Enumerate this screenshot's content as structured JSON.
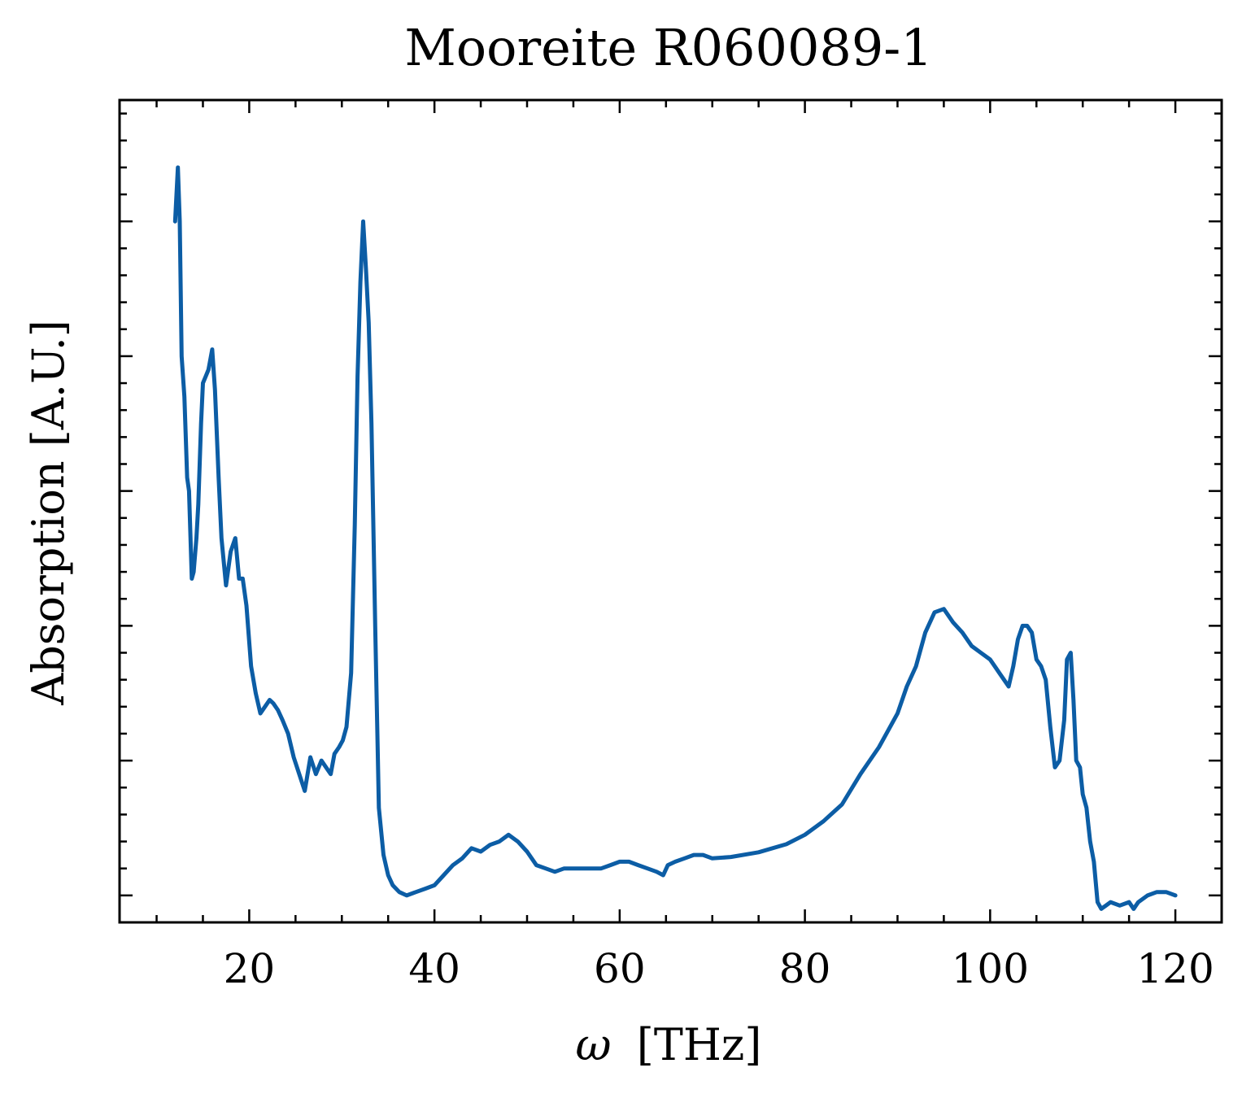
{
  "chart_data": {
    "type": "line",
    "title": "Mooreite R060089-1",
    "xlabel_symbol": "ω",
    "xlabel_unit": "[THz]",
    "ylabel": "Absorption [A.U.]",
    "xlim": [
      6,
      125
    ],
    "ylim": [
      -0.04,
      1.18
    ],
    "x_ticks": [
      20,
      40,
      60,
      80,
      100,
      120
    ],
    "x_minor_step": 5,
    "y_major_ticks": [
      0,
      0.2,
      0.4,
      0.6,
      0.8,
      1.0
    ],
    "y_minor_step": 0.04,
    "show_y_tick_labels": false,
    "grid": false,
    "legend": "none",
    "series": [
      {
        "color": "#0c5da5",
        "x": [
          12.0,
          12.3,
          12.5,
          12.7,
          13.0,
          13.3,
          13.5,
          13.8,
          14.0,
          14.3,
          14.5,
          14.8,
          15.0,
          15.3,
          15.6,
          16.0,
          16.3,
          16.7,
          17.0,
          17.5,
          18.0,
          18.5,
          18.9,
          19.3,
          19.7,
          20.2,
          20.7,
          21.2,
          21.7,
          22.2,
          22.6,
          23.1,
          23.6,
          24.2,
          24.8,
          25.4,
          26.0,
          26.6,
          27.2,
          27.8,
          28.3,
          28.8,
          29.2,
          29.7,
          30.1,
          30.5,
          31.0,
          31.4,
          31.7,
          32.0,
          32.3,
          32.6,
          32.9,
          33.2,
          33.6,
          34.0,
          34.5,
          35.0,
          35.5,
          36.2,
          37.0,
          38.0,
          39.0,
          40.0,
          41.0,
          42.0,
          43.0,
          44.0,
          45.0,
          46.0,
          47.0,
          48.0,
          49.0,
          50.0,
          51.0,
          52.0,
          53.0,
          54.0,
          56.0,
          58.0,
          59.0,
          60.0,
          61.0,
          62.0,
          63.0,
          64.0,
          64.7,
          65.2,
          66.0,
          67.0,
          68.0,
          69.0,
          70.0,
          72.0,
          75.0,
          78.0,
          80.0,
          82.0,
          84.0,
          86.0,
          88.0,
          89.0,
          90.0,
          91.0,
          92.0,
          93.0,
          94.0,
          95.0,
          96.0,
          97.0,
          98.0,
          99.0,
          100.0,
          100.5,
          101.0,
          101.5,
          102.0,
          102.5,
          103.0,
          103.5,
          104.0,
          104.5,
          105.0,
          105.5,
          106.0,
          106.5,
          107.0,
          107.5,
          108.0,
          108.3,
          108.7,
          109.0,
          109.3,
          109.7,
          110.0,
          110.4,
          110.8,
          111.2,
          111.6,
          112.0,
          112.5,
          113.0,
          114.0,
          115.0,
          115.5,
          116.0,
          117.0,
          118.0,
          119.0,
          120.0
        ],
        "values": [
          1.0,
          1.08,
          1.0,
          0.8,
          0.74,
          0.62,
          0.6,
          0.47,
          0.48,
          0.53,
          0.58,
          0.7,
          0.76,
          0.77,
          0.78,
          0.81,
          0.75,
          0.62,
          0.53,
          0.46,
          0.51,
          0.53,
          0.47,
          0.47,
          0.43,
          0.34,
          0.3,
          0.27,
          0.28,
          0.29,
          0.285,
          0.275,
          0.26,
          0.24,
          0.205,
          0.18,
          0.155,
          0.205,
          0.18,
          0.2,
          0.19,
          0.18,
          0.21,
          0.22,
          0.23,
          0.25,
          0.33,
          0.55,
          0.77,
          0.91,
          1.0,
          0.93,
          0.85,
          0.7,
          0.4,
          0.13,
          0.06,
          0.03,
          0.015,
          0.005,
          0.0,
          0.005,
          0.01,
          0.015,
          0.03,
          0.045,
          0.055,
          0.07,
          0.065,
          0.075,
          0.08,
          0.09,
          0.08,
          0.065,
          0.045,
          0.04,
          0.035,
          0.04,
          0.04,
          0.04,
          0.045,
          0.05,
          0.05,
          0.045,
          0.04,
          0.035,
          0.03,
          0.045,
          0.05,
          0.055,
          0.06,
          0.06,
          0.055,
          0.057,
          0.064,
          0.076,
          0.09,
          0.11,
          0.135,
          0.18,
          0.22,
          0.245,
          0.27,
          0.31,
          0.34,
          0.39,
          0.42,
          0.425,
          0.405,
          0.39,
          0.37,
          0.36,
          0.35,
          0.34,
          0.33,
          0.32,
          0.31,
          0.34,
          0.38,
          0.4,
          0.4,
          0.39,
          0.35,
          0.34,
          0.32,
          0.25,
          0.19,
          0.2,
          0.26,
          0.35,
          0.36,
          0.29,
          0.2,
          0.19,
          0.15,
          0.13,
          0.08,
          0.05,
          -0.01,
          -0.02,
          -0.015,
          -0.01,
          -0.015,
          -0.01,
          -0.02,
          -0.01,
          0.0,
          0.005,
          0.005,
          0.0
        ]
      }
    ]
  }
}
